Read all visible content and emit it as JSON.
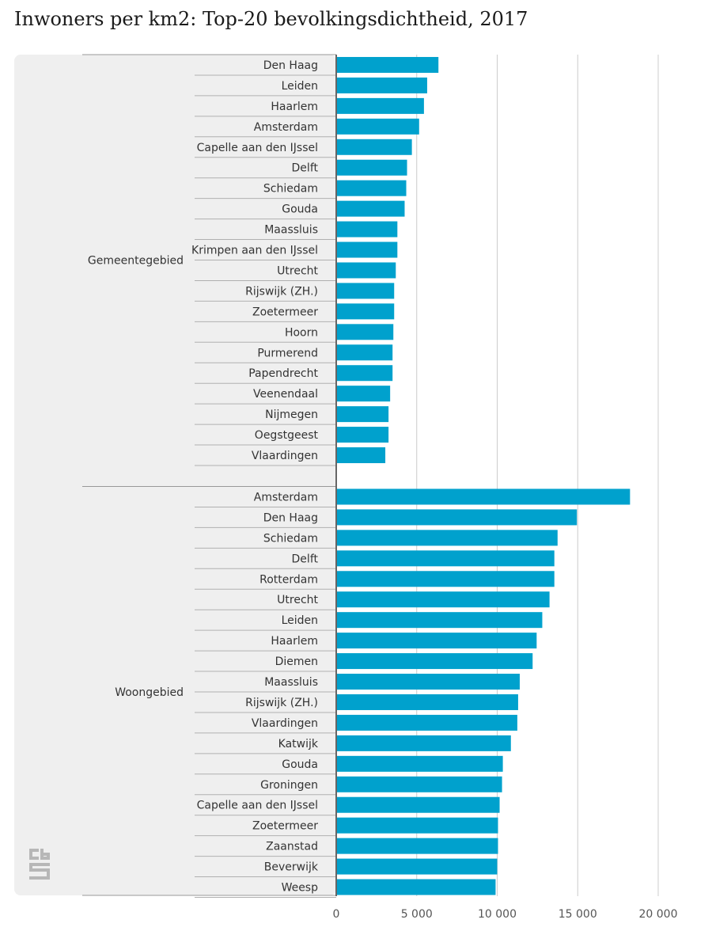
{
  "title": "Inwoners per km2: Top-20 bevolkingsdichtheid, 2017",
  "logo": "cbs-logo",
  "colors": {
    "bar": "#00a1cd",
    "panel": "#efefef",
    "grid": "#cccccc",
    "axis": "#666666",
    "text": "#333333"
  },
  "chart_data": {
    "type": "bar",
    "orientation": "horizontal",
    "title": "Inwoners per km2: Top-20 bevolkingsdichtheid, 2017",
    "xlim": [
      0,
      20000
    ],
    "xticks": [
      "0",
      "5 000",
      "10 000",
      "15 000",
      "20 000"
    ],
    "xtick_values": [
      0,
      5000,
      10000,
      15000,
      20000
    ],
    "grid": true,
    "groups": [
      {
        "name": "Gemeentegebied",
        "categories": [
          "Den Haag",
          "Leiden",
          "Haarlem",
          "Amsterdam",
          "Capelle aan den IJssel",
          "Delft",
          "Schiedam",
          "Gouda",
          "Maassluis",
          "Krimpen aan den IJssel",
          "Utrecht",
          "Rijswijk (ZH.)",
          "Zoetermeer",
          "Hoorn",
          "Purmerend",
          "Papendrecht",
          "Veenendaal",
          "Nijmegen",
          "Oegstgeest",
          "Vlaardingen"
        ],
        "values": [
          6300,
          5600,
          5400,
          5100,
          4650,
          4350,
          4300,
          4200,
          3750,
          3750,
          3650,
          3550,
          3550,
          3500,
          3450,
          3450,
          3300,
          3200,
          3200,
          3000
        ]
      },
      {
        "name": "Woongebied",
        "categories": [
          "Amsterdam",
          "Den Haag",
          "Schiedam",
          "Delft",
          "Rotterdam",
          "Utrecht",
          "Leiden",
          "Haarlem",
          "Diemen",
          "Maassluis",
          "Rijswijk (ZH.)",
          "Vlaardingen",
          "Katwijk",
          "Gouda",
          "Groningen",
          "Capelle aan den IJssel",
          "Zoetermeer",
          "Zaanstad",
          "Beverwijk",
          "Weesp"
        ],
        "values": [
          18200,
          14900,
          13700,
          13500,
          13500,
          13200,
          12750,
          12400,
          12150,
          11350,
          11250,
          11200,
          10800,
          10300,
          10250,
          10100,
          10000,
          10000,
          9950,
          9850
        ]
      }
    ]
  }
}
